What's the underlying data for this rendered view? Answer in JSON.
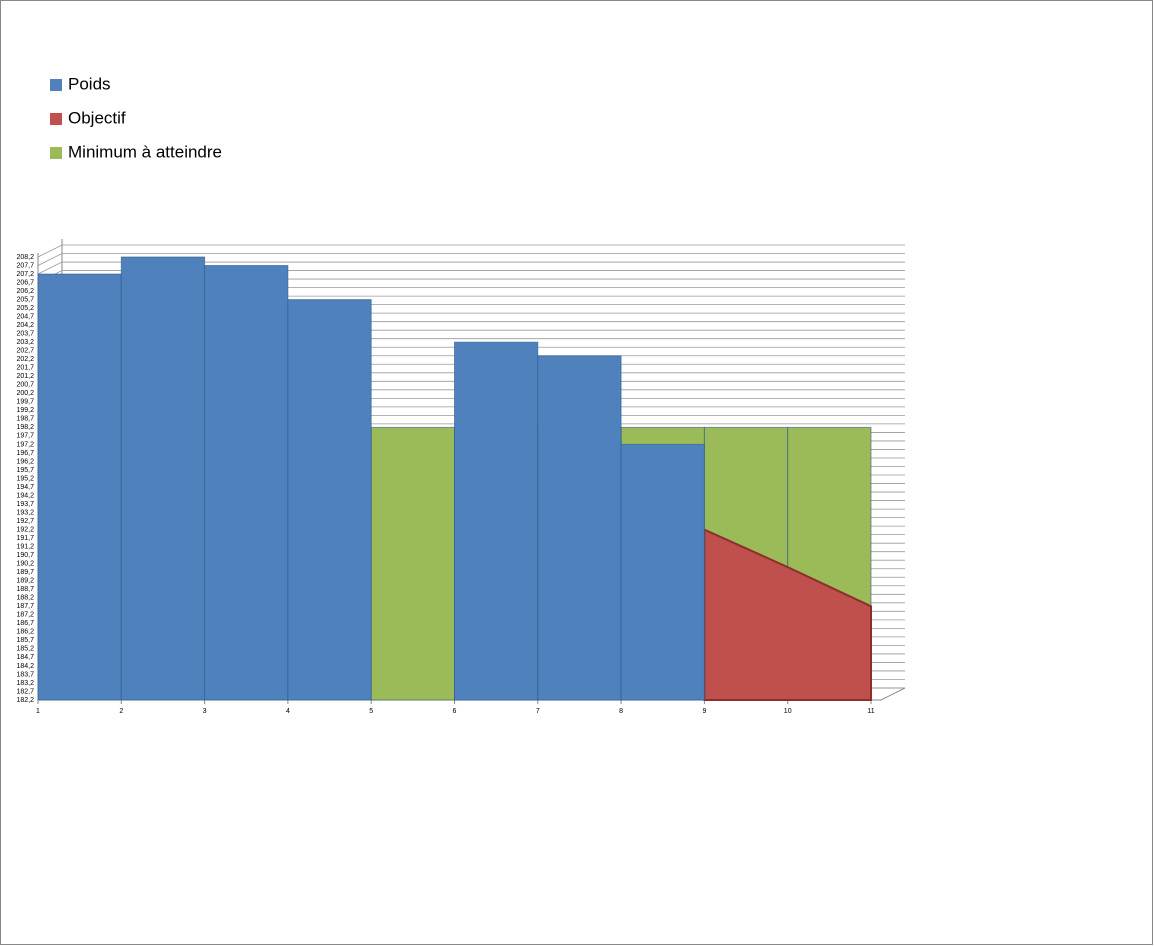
{
  "chart_data": {
    "type": "area",
    "x": [
      1,
      2,
      3,
      4,
      5,
      6,
      7,
      8,
      9,
      10,
      11
    ],
    "xlim": [
      1,
      11
    ],
    "xticks": [
      1,
      2,
      3,
      4,
      5,
      6,
      7,
      8,
      9,
      10,
      11
    ],
    "ylim": [
      182.2,
      208.2
    ],
    "yticks": [
      {
        "value": 182.2,
        "label": "182,2"
      },
      {
        "value": 182.7,
        "label": "182,7"
      },
      {
        "value": 183.2,
        "label": "183,2"
      },
      {
        "value": 183.7,
        "label": "183,7"
      },
      {
        "value": 184.2,
        "label": "184,2"
      },
      {
        "value": 184.7,
        "label": "184,7"
      },
      {
        "value": 185.2,
        "label": "185,2"
      },
      {
        "value": 185.7,
        "label": "185,7"
      },
      {
        "value": 186.2,
        "label": "186,2"
      },
      {
        "value": 186.7,
        "label": "186,7"
      },
      {
        "value": 187.2,
        "label": "187,2"
      },
      {
        "value": 187.7,
        "label": "187,7"
      },
      {
        "value": 188.2,
        "label": "188,2"
      },
      {
        "value": 188.7,
        "label": "188,7"
      },
      {
        "value": 189.2,
        "label": "189,2"
      },
      {
        "value": 189.7,
        "label": "189,7"
      },
      {
        "value": 190.2,
        "label": "190,2"
      },
      {
        "value": 190.7,
        "label": "190,7"
      },
      {
        "value": 191.2,
        "label": "191,2"
      },
      {
        "value": 191.7,
        "label": "191,7"
      },
      {
        "value": 192.2,
        "label": "192,2"
      },
      {
        "value": 192.7,
        "label": "192,7"
      },
      {
        "value": 193.2,
        "label": "193,2"
      },
      {
        "value": 193.7,
        "label": "193,7"
      },
      {
        "value": 194.2,
        "label": "194,2"
      },
      {
        "value": 194.7,
        "label": "194,7"
      },
      {
        "value": 195.2,
        "label": "195,2"
      },
      {
        "value": 195.7,
        "label": "195,7"
      },
      {
        "value": 196.2,
        "label": "196,2"
      },
      {
        "value": 196.7,
        "label": "196,7"
      },
      {
        "value": 197.2,
        "label": "197,2"
      },
      {
        "value": 197.7,
        "label": "197,7"
      },
      {
        "value": 198.2,
        "label": "198,2"
      },
      {
        "value": 198.7,
        "label": "198,7"
      },
      {
        "value": 199.2,
        "label": "199,2"
      },
      {
        "value": 199.7,
        "label": "199,7"
      },
      {
        "value": 200.2,
        "label": "200,2"
      },
      {
        "value": 200.7,
        "label": "200,7"
      },
      {
        "value": 201.2,
        "label": "201,2"
      },
      {
        "value": 201.7,
        "label": "201,7"
      },
      {
        "value": 202.2,
        "label": "202,2"
      },
      {
        "value": 202.7,
        "label": "202,7"
      },
      {
        "value": 203.2,
        "label": "203,2"
      },
      {
        "value": 203.7,
        "label": "203,7"
      },
      {
        "value": 204.2,
        "label": "204,2"
      },
      {
        "value": 204.7,
        "label": "204,7"
      },
      {
        "value": 205.2,
        "label": "205,2"
      },
      {
        "value": 205.7,
        "label": "205,7"
      },
      {
        "value": 206.2,
        "label": "206,2"
      },
      {
        "value": 206.7,
        "label": "206,7"
      },
      {
        "value": 207.2,
        "label": "207,2"
      },
      {
        "value": 207.7,
        "label": "207,7"
      },
      {
        "value": 208.2,
        "label": "208,2"
      }
    ],
    "grid": true,
    "legend": "top-left",
    "series": [
      {
        "name": "Poids",
        "color": "#4f81bd",
        "step": true,
        "values": [
          207.2,
          208.2,
          207.7,
          205.7,
          null,
          203.2,
          202.4,
          197.2,
          null,
          null,
          null
        ]
      },
      {
        "name": "Objectif",
        "color": "#c0504d",
        "step": false,
        "values": [
          null,
          null,
          null,
          null,
          null,
          null,
          null,
          null,
          192.2,
          190,
          187.7
        ]
      },
      {
        "name": "Minimum à atteindre",
        "color": "#9bbb59",
        "step": true,
        "values": [
          null,
          null,
          null,
          null,
          198.2,
          198.2,
          198.2,
          198.2,
          198.2,
          198.2,
          198.2
        ]
      }
    ]
  }
}
